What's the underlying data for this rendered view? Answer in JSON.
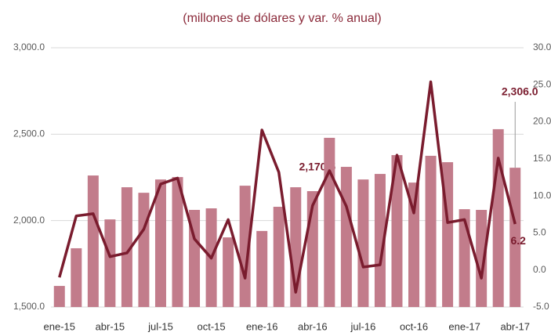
{
  "chart_data": {
    "type": "bar-line",
    "title": "(millones de dólares y var. % anual)",
    "categories": [
      "ene-15",
      null,
      null,
      "abr-15",
      null,
      null,
      "jul-15",
      null,
      null,
      "oct-15",
      null,
      null,
      "ene-16",
      null,
      null,
      "abr-16",
      null,
      null,
      "jul-16",
      null,
      null,
      "oct-16",
      null,
      null,
      "ene-17",
      null,
      null,
      "abr-17"
    ],
    "series": [
      {
        "type": "bar",
        "color": "#c27c8b",
        "values": [
          1622,
          1840,
          2261,
          2007,
          2193,
          2161,
          2238,
          2252,
          2062,
          2071,
          1903,
          2202,
          1940,
          2080,
          2193,
          2170.5,
          2479,
          2311,
          2238,
          2270,
          2379,
          2220,
          2375,
          2338,
          2066,
          2062,
          2529,
          2306
        ],
        "value_labels": [
          null,
          null,
          null,
          null,
          null,
          null,
          null,
          null,
          null,
          null,
          null,
          null,
          null,
          null,
          null,
          "2,170.5",
          null,
          null,
          null,
          null,
          null,
          null,
          null,
          null,
          null,
          null,
          null,
          "2,306.0"
        ]
      },
      {
        "type": "line",
        "color": "#7a1c2e",
        "axis": "y2",
        "values": [
          -1.0,
          7.3,
          7.6,
          1.8,
          2.3,
          5.5,
          11.6,
          12.4,
          4.2,
          1.6,
          6.8,
          -1.1,
          18.9,
          13.2,
          -3.0,
          8.7,
          13.4,
          8.6,
          0.4,
          0.7,
          15.5,
          7.7,
          25.4,
          6.4,
          6.8,
          -1.1,
          15.1,
          6.2
        ],
        "value_labels": [
          null,
          null,
          null,
          null,
          null,
          null,
          null,
          null,
          null,
          null,
          null,
          null,
          null,
          null,
          null,
          null,
          null,
          null,
          null,
          null,
          null,
          null,
          null,
          null,
          null,
          null,
          null,
          "6.2"
        ]
      }
    ],
    "ylim": [
      1500,
      3000
    ],
    "yticks": [
      {
        "value": 1500,
        "label": "1,500.0"
      },
      {
        "value": 2000,
        "label": "2,000.0"
      },
      {
        "value": 2500,
        "label": "2,500.0"
      },
      {
        "value": 3000,
        "label": "3,000.0"
      }
    ],
    "y2lim": [
      -5,
      30
    ],
    "y2ticks": [
      {
        "value": -5,
        "label": "-5.0"
      },
      {
        "value": 0,
        "label": "0.0"
      },
      {
        "value": 5,
        "label": "5.0"
      },
      {
        "value": 10,
        "label": "10.0"
      },
      {
        "value": 15,
        "label": "15.0"
      },
      {
        "value": 20,
        "label": "20.0"
      },
      {
        "value": 25,
        "label": "25.0"
      },
      {
        "value": 30,
        "label": "30.0"
      }
    ],
    "grid": true
  }
}
